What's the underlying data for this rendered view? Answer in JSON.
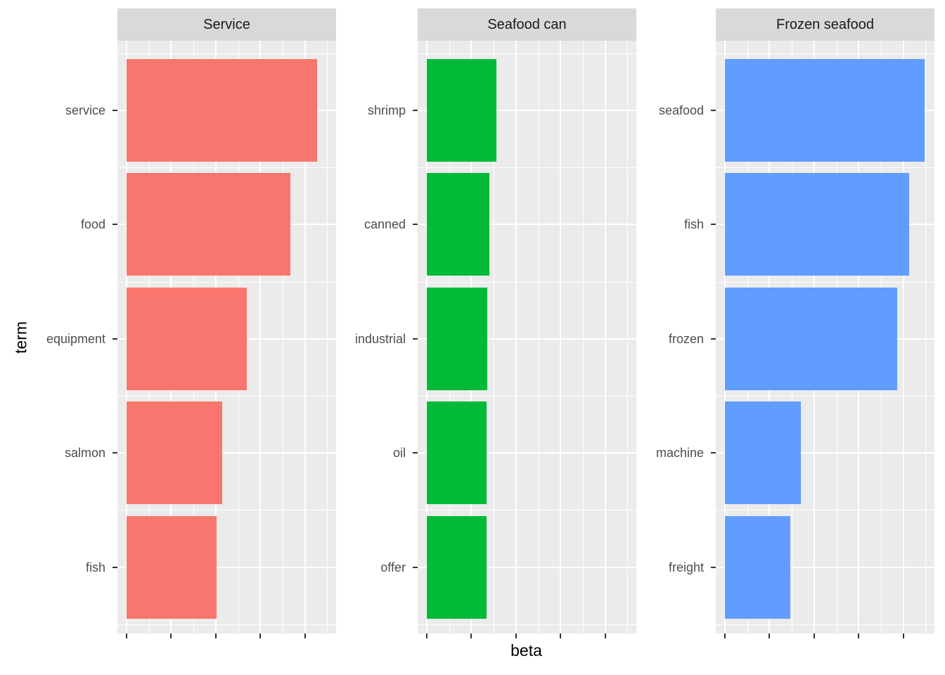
{
  "figure": {
    "background": "#FFFFFF",
    "panel_background": "#EBEBEB",
    "strip_background": "#D9D9D9",
    "gridline_color": "#FFFFFF",
    "axis_text_color": "#4D4D4D",
    "tick_color": "#333333"
  },
  "chart_data": {
    "type": "bar",
    "orientation": "horizontal",
    "xlabel": "beta",
    "ylabel": "term",
    "x_axis": {
      "tick_labels": [],
      "major_ticks_per_facet": 5,
      "minor_gridlines": true,
      "note": "x-axis tick marks are unlabeled; values are estimated lengths in major-gridline units from the bar baseline",
      "xlim_units": [
        0,
        4.7
      ]
    },
    "legend": "none",
    "facets": [
      {
        "title": "Service",
        "color": "#F8766D",
        "categories": [
          "service",
          "food",
          "equipment",
          "salmon",
          "fish"
        ],
        "values": [
          4.27,
          3.67,
          2.7,
          2.15,
          2.02
        ]
      },
      {
        "title": "Seafood can",
        "color": "#00BA38",
        "categories": [
          "shrimp",
          "canned",
          "industrial",
          "oil",
          "offer"
        ],
        "values": [
          1.56,
          1.4,
          1.35,
          1.34,
          1.34
        ]
      },
      {
        "title": "Frozen seafood",
        "color": "#619CFF",
        "categories": [
          "seafood",
          "fish",
          "frozen",
          "machine",
          "freight"
        ],
        "values": [
          4.48,
          4.13,
          3.86,
          1.71,
          1.46
        ]
      }
    ]
  }
}
